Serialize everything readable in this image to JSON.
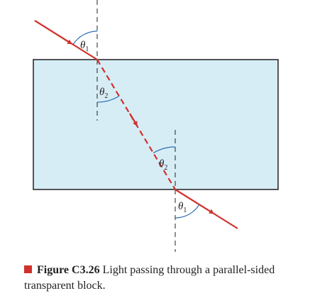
{
  "diagram": {
    "labels": {
      "entry_angle": {
        "symbol": "θ",
        "sub": "1"
      },
      "refracted_angle_top": {
        "symbol": "θ",
        "sub": "2"
      },
      "refracted_angle_bottom": {
        "symbol": "θ",
        "sub": "2"
      },
      "exit_angle": {
        "symbol": "θ",
        "sub": "1"
      }
    },
    "colors": {
      "ray": "#d0322b",
      "block_fill": "#d6edf6",
      "block_stroke": "#231f20",
      "normal": "#231f20",
      "angle_arc": "#2e6db4"
    }
  },
  "caption": {
    "figure_number": "Figure C3.26",
    "text": "Light passing through a parallel-sided transparent block."
  }
}
